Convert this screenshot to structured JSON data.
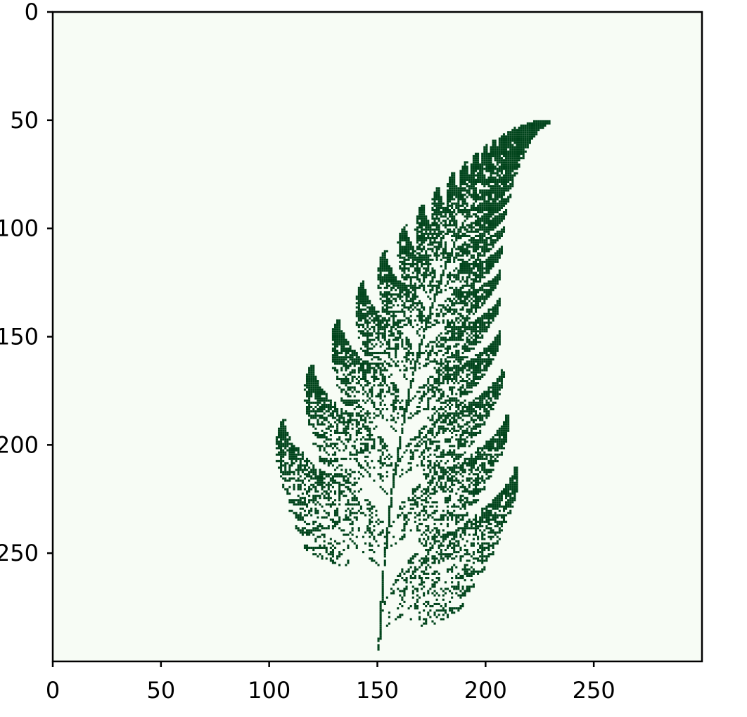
{
  "colors": {
    "background": "#f7fcf5",
    "foreground": "#00441b",
    "axes": "#000000"
  },
  "chart_data": {
    "type": "heatmap",
    "title": "",
    "xlabel": "",
    "ylabel": "",
    "grid": false,
    "xlim": [
      0,
      300
    ],
    "ylim": [
      300,
      0
    ],
    "xticks": [
      0,
      50,
      100,
      150,
      200,
      250
    ],
    "xtick_labels": [
      "0",
      "50",
      "100",
      "150",
      "200",
      "250"
    ],
    "yticks": [
      0,
      50,
      100,
      150,
      200,
      250
    ],
    "ytick_labels": [
      "0",
      "50",
      "100",
      "150",
      "200",
      "250"
    ],
    "resolution": [
      300,
      300
    ],
    "colormap": "Greens",
    "values": "binary occupancy image of a Barnsley fern (1 = visited pixel, 0 = background)",
    "frond": {
      "stem_base": [
        150,
        297
      ],
      "tip": [
        229,
        51
      ],
      "left_extent_x": 84,
      "right_extent_x": 229,
      "top_extent_y": 51,
      "bottom_extent_y": 297
    }
  }
}
